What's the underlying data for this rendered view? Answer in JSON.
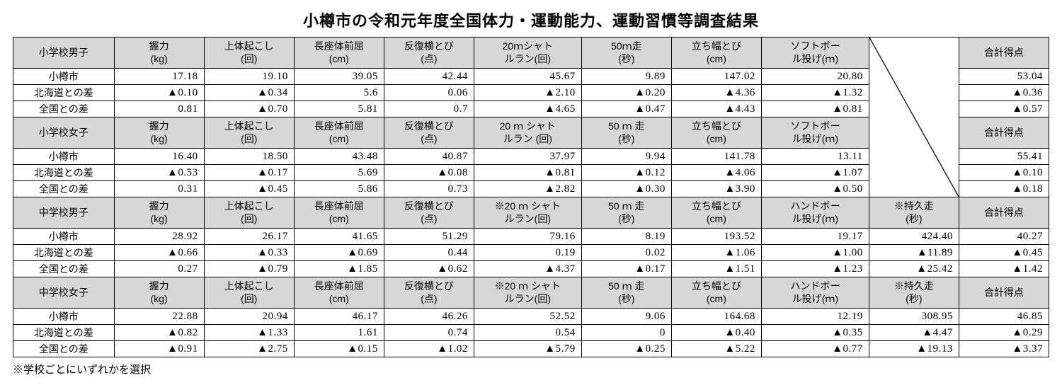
{
  "title": "小樽市の令和元年度全国体力・運動能力、運動習慣等調査結果",
  "footnote": "※学校ごとにいずれかを選択",
  "negMark": "▲",
  "sections": [
    {
      "group": "小学校男子",
      "totalHeader": "合計得点",
      "headers": [
        "握力\n(kg)",
        "上体起こし\n(回)",
        "長座体前屈\n(cm)",
        "反復横とび\n(点)",
        "20ｍシャト\nルラン(回)",
        "50ｍ走\n(秒)",
        "立ち幅とび\n(cm)",
        "ソフトボー\nル投げ(ｍ)"
      ],
      "extraHeader": null,
      "rows": [
        {
          "label": "小樽市",
          "cells": [
            "17.18",
            "19.10",
            "39.05",
            "42.44",
            "45.67",
            "9.89",
            "147.02",
            "20.80"
          ],
          "extra": null,
          "total": "53.04"
        },
        {
          "label": "北海道との差",
          "cells": [
            "▲0.10",
            "▲0.34",
            "5.6",
            "0.06",
            "▲2.10",
            "▲0.20",
            "▲4.36",
            "▲1.32"
          ],
          "extra": null,
          "total": "▲0.36"
        },
        {
          "label": "全国との差",
          "cells": [
            "0.81",
            "▲0.70",
            "5.81",
            "0.7",
            "▲4.65",
            "▲0.47",
            "▲4.43",
            "▲0.81"
          ],
          "extra": null,
          "total": "▲0.57"
        }
      ]
    },
    {
      "group": "小学校女子",
      "totalHeader": "合計得点",
      "headers": [
        "握力\n(kg)",
        "上体起こし\n(回)",
        "長座体前屈\n(cm)",
        "反復横とび\n(点)",
        "20 ｍ シャト\nルラン (回)",
        "50 ｍ 走\n(秒)",
        "立ち幅とび\n(cm)",
        "ソフトボー\nル投げ(ｍ)"
      ],
      "extraHeader": null,
      "rows": [
        {
          "label": "小樽市",
          "cells": [
            "16.40",
            "18.50",
            "43.48",
            "40.87",
            "37.97",
            "9.94",
            "141.78",
            "13.11"
          ],
          "extra": null,
          "total": "55.41"
        },
        {
          "label": "北海道との差",
          "cells": [
            "▲0.53",
            "▲0.17",
            "5.69",
            "▲0.08",
            "▲0.81",
            "▲0.12",
            "▲4.06",
            "▲1.07"
          ],
          "extra": null,
          "total": "▲0.10"
        },
        {
          "label": "全国との差",
          "cells": [
            "0.31",
            "▲0.45",
            "5.86",
            "0.73",
            "▲2.82",
            "▲0.30",
            "▲3.90",
            "▲0.50"
          ],
          "extra": null,
          "total": "▲0.18"
        }
      ]
    },
    {
      "group": "中学校男子",
      "totalHeader": "合計得点",
      "headers": [
        "握力\n(kg)",
        "上体起こし\n(回)",
        "長座体前屈\n(cm)",
        "反復横とび\n(点)",
        "※20 ｍ シャト\nルラン(回)",
        "50 ｍ 走\n(秒)",
        "立ち幅とび\n(cm)",
        "ハンドボー\nル投げ(ｍ)"
      ],
      "extraHeader": "※持久走\n(秒)",
      "rows": [
        {
          "label": "小樽市",
          "cells": [
            "28.92",
            "26.17",
            "41.65",
            "51.29",
            "79.16",
            "8.19",
            "193.52",
            "19.17"
          ],
          "extra": "424.40",
          "total": "40.27"
        },
        {
          "label": "北海道との差",
          "cells": [
            "▲0.66",
            "▲0.33",
            "▲0.69",
            "0.44",
            "0.19",
            "0.02",
            "▲1.06",
            "▲1.00"
          ],
          "extra": "▲11.89",
          "total": "▲0.45"
        },
        {
          "label": "全国との差",
          "cells": [
            "0.27",
            "▲0.79",
            "▲1.85",
            "▲0.62",
            "▲4.37",
            "▲0.17",
            "▲1.51",
            "▲1.23"
          ],
          "extra": "▲25.42",
          "total": "▲1.42"
        }
      ]
    },
    {
      "group": "中学校女子",
      "totalHeader": "合計得点",
      "headers": [
        "握力\n(kg)",
        "上体起こし\n(回)",
        "長座体前屈\n(cm)",
        "反復横とび\n(点)",
        "※20 ｍ シャト\nルラン(回)",
        "50 ｍ 走\n(秒)",
        "立ち幅とび\n(cm)",
        "ハンドボー\nル投げ(ｍ)"
      ],
      "extraHeader": "※持久走\n(秒)",
      "rows": [
        {
          "label": "小樽市",
          "cells": [
            "22.88",
            "20.94",
            "46.17",
            "46.26",
            "52.52",
            "9.06",
            "164.68",
            "12.19"
          ],
          "extra": "308.95",
          "total": "46.85"
        },
        {
          "label": "北海道との差",
          "cells": [
            "▲0.82",
            "▲1.33",
            "1.61",
            "0.74",
            "0.54",
            "0",
            "▲0.40",
            "▲0.35"
          ],
          "extra": "▲4.47",
          "total": "▲0.29"
        },
        {
          "label": "全国との差",
          "cells": [
            "▲0.91",
            "▲2.75",
            "▲0.15",
            "▲1.02",
            "▲5.79",
            "▲0.25",
            "▲5.22",
            "▲0.77"
          ],
          "extra": "▲19.13",
          "total": "▲3.37"
        }
      ]
    }
  ]
}
